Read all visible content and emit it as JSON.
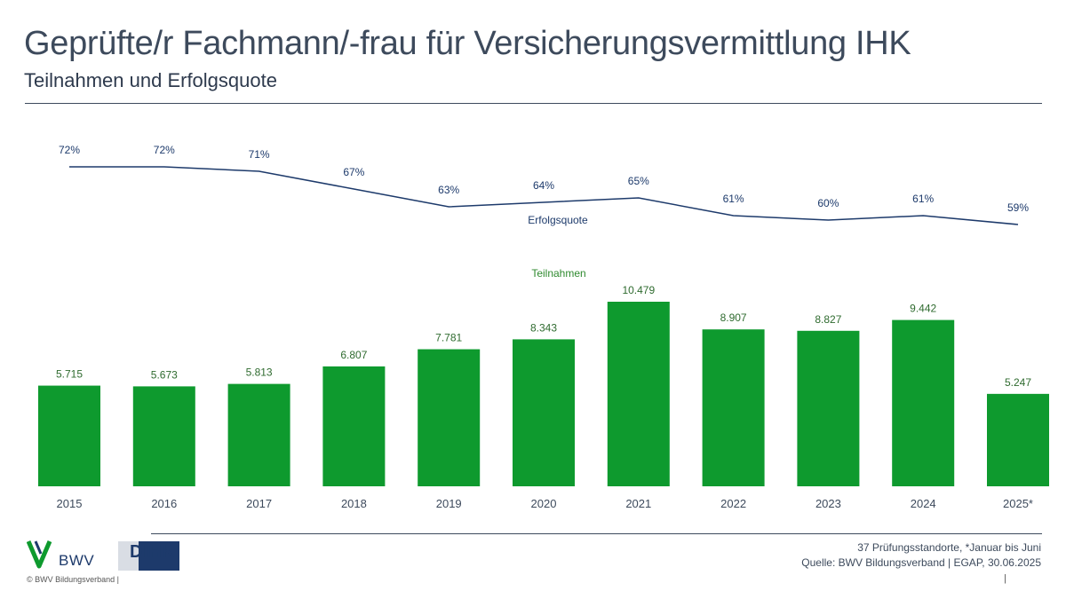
{
  "header": {
    "title": "Geprüfte/r Fachmann/-frau für Versicherungsvermittlung IHK",
    "subtitle": "Teilnahmen und Erfolgsquote"
  },
  "chart_data": {
    "type": "bar",
    "categories": [
      "2015",
      "2016",
      "2017",
      "2018",
      "2019",
      "2020",
      "2021",
      "2022",
      "2023",
      "2024",
      "2025*"
    ],
    "series": [
      {
        "name": "Teilnahmen",
        "type": "bar",
        "values": [
          5715,
          5673,
          5813,
          6807,
          7781,
          8343,
          10479,
          8907,
          8827,
          9442,
          5247
        ],
        "labels": [
          "5.715",
          "5.673",
          "5.813",
          "6.807",
          "7.781",
          "8.343",
          "10.479",
          "8.907",
          "8.827",
          "9.442",
          "5.247"
        ],
        "color": "#0e9a2e"
      },
      {
        "name": "Erfolgsquote",
        "type": "line",
        "values": [
          72,
          72,
          71,
          67,
          63,
          64,
          65,
          61,
          60,
          61,
          59
        ],
        "labels": [
          "72%",
          "72%",
          "71%",
          "67%",
          "63%",
          "64%",
          "65%",
          "61%",
          "60%",
          "61%",
          "59%"
        ],
        "color": "#1d3a6b"
      }
    ],
    "legend": "inline labels",
    "grid": false
  },
  "footer": {
    "brand": "BWV",
    "partner": "DIHK",
    "copyright": "© BWV Bildungsverband |",
    "note_line1": "37 Prüfungsstandorte, *Januar bis Juni",
    "note_line2": "Quelle: BWV Bildungsverband | EGAP, 30.06.2025",
    "pipe": "|"
  }
}
